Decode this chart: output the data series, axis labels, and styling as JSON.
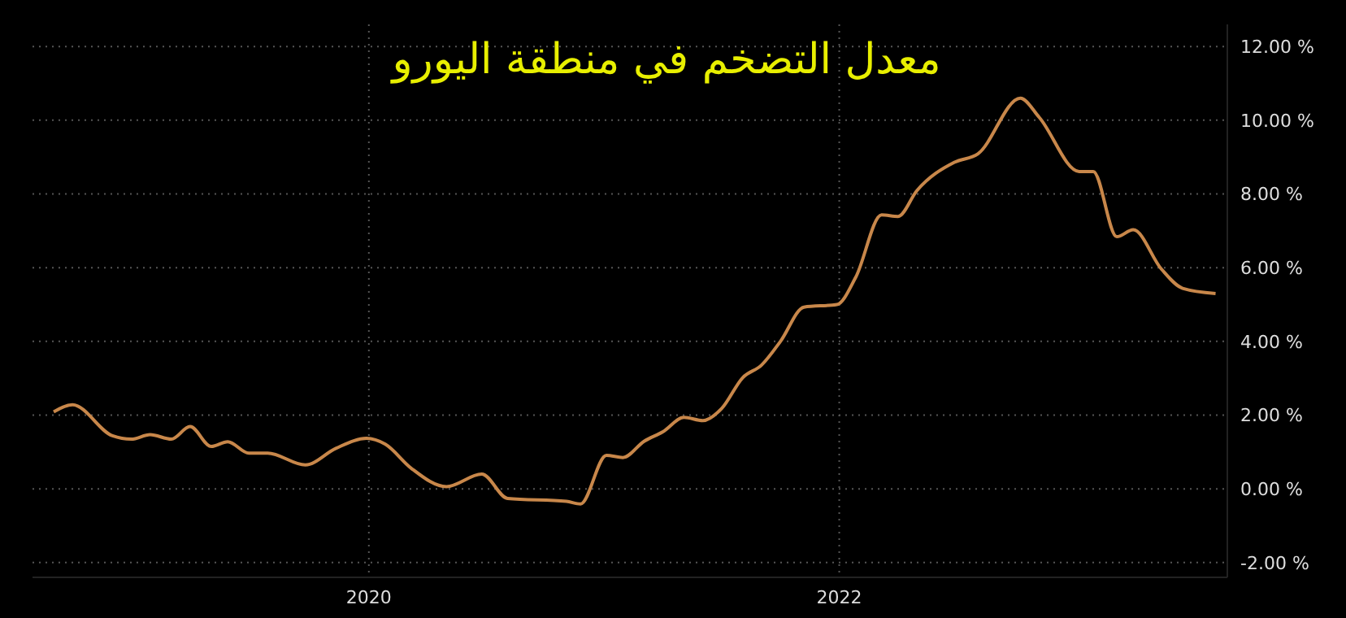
{
  "chart_data": {
    "type": "line",
    "title": "معدل التضخم في منطقة اليورو",
    "x": [
      2018.66,
      2018.74,
      2018.91,
      2018.99,
      2019.07,
      2019.16,
      2019.24,
      2019.33,
      2019.4,
      2019.49,
      2019.57,
      2019.73,
      2019.86,
      2019.99,
      2020.07,
      2020.18,
      2020.33,
      2020.48,
      2020.59,
      2020.84,
      2020.9,
      2021.01,
      2021.08,
      2021.17,
      2021.25,
      2021.34,
      2021.42,
      2021.5,
      2021.59,
      2021.67,
      2021.75,
      2021.85,
      2021.99,
      2022.07,
      2022.18,
      2022.25,
      2022.33,
      2022.49,
      2022.59,
      2022.77,
      2022.85,
      2023.02,
      2023.08,
      2023.18,
      2023.25,
      2023.37,
      2023.46,
      2023.6
    ],
    "series": [
      {
        "color": "#c8874a",
        "values": [
          2.09,
          2.28,
          1.44,
          1.35,
          1.47,
          1.35,
          1.69,
          1.15,
          1.28,
          0.97,
          0.97,
          0.65,
          1.1,
          1.37,
          1.21,
          0.56,
          0.06,
          0.4,
          -0.26,
          -0.34,
          -0.41,
          0.91,
          0.85,
          1.29,
          1.55,
          1.94,
          1.85,
          2.18,
          3.02,
          3.36,
          4.0,
          4.93,
          5.0,
          5.74,
          7.43,
          7.39,
          8.09,
          8.86,
          9.09,
          10.6,
          10.08,
          8.61,
          8.61,
          6.84,
          7.03,
          5.96,
          5.44,
          5.3
        ]
      }
    ],
    "xlim": [
      2018.57,
      2023.65
    ],
    "xticks": [
      2020,
      2022
    ],
    "ylim": [
      -2.4,
      12.6
    ],
    "yticks": [
      {
        "value": -2,
        "label": "-2.00 %"
      },
      {
        "value": 0,
        "label": "0.00 %"
      },
      {
        "value": 2,
        "label": "2.00 %"
      },
      {
        "value": 4,
        "label": "4.00 %"
      },
      {
        "value": 6,
        "label": "6.00 %"
      },
      {
        "value": 8,
        "label": "8.00 %"
      },
      {
        "value": 10,
        "label": "10.00 %"
      },
      {
        "value": 12,
        "label": "12.00 %"
      }
    ],
    "grid": true,
    "marker": "none",
    "line_style": "solid",
    "legend": false
  }
}
